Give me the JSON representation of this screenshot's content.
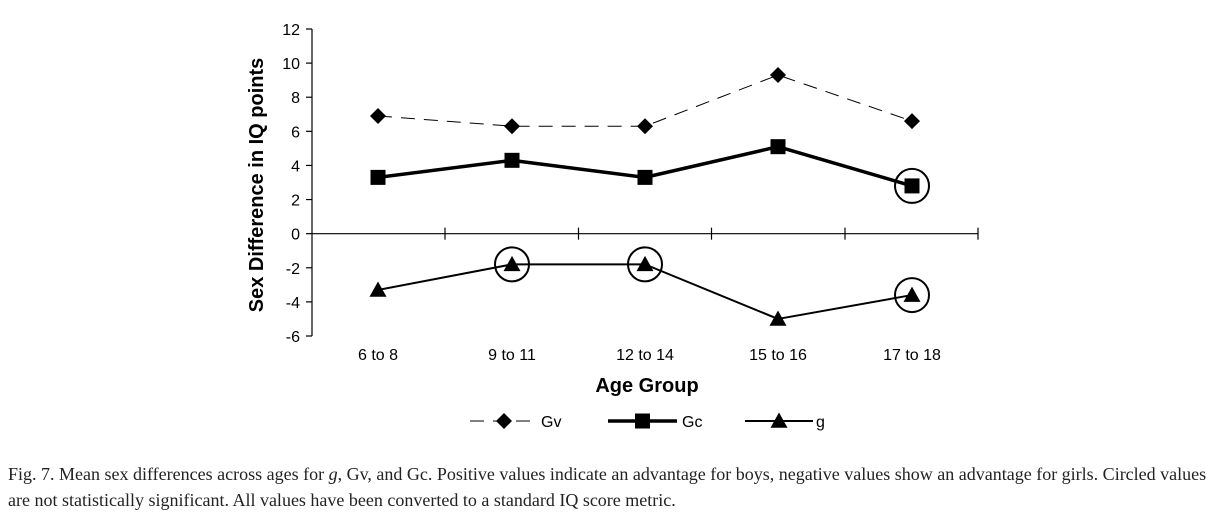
{
  "chart_data": {
    "type": "line",
    "xlabel": "Age Group",
    "ylabel": "Sex Difference in IQ points",
    "categories": [
      "6 to 8",
      "9 to 11",
      "12 to 14",
      "15 to 16",
      "17 to 18"
    ],
    "ylim": [
      -6,
      12
    ],
    "yticks": [
      12,
      10,
      8,
      6,
      4,
      2,
      0,
      -2,
      -4,
      -6
    ],
    "grid": false,
    "legend_position": "bottom",
    "series": [
      {
        "name": "Gv",
        "marker": "diamond",
        "line": "dashed",
        "values": [
          6.9,
          6.3,
          6.3,
          9.3,
          6.6
        ],
        "not_significant": [
          false,
          false,
          false,
          false,
          false
        ]
      },
      {
        "name": "Gc",
        "marker": "square",
        "line": "bold",
        "values": [
          3.3,
          4.3,
          3.3,
          5.1,
          2.8
        ],
        "not_significant": [
          false,
          false,
          false,
          false,
          true
        ]
      },
      {
        "name": "g",
        "marker": "triangle",
        "line": "solid",
        "values": [
          -3.3,
          -1.8,
          -1.8,
          -5.0,
          -3.6
        ],
        "not_significant": [
          false,
          true,
          true,
          false,
          true
        ]
      }
    ]
  },
  "caption": {
    "prefix": "Fig. 7. Mean sex differences across ages for ",
    "g": "g",
    "rest": ", Gv, and Gc. Positive values indicate an advantage for boys, negative values show an advantage for girls. Circled values are not statistically significant. All values have been converted to a standard IQ score metric."
  }
}
